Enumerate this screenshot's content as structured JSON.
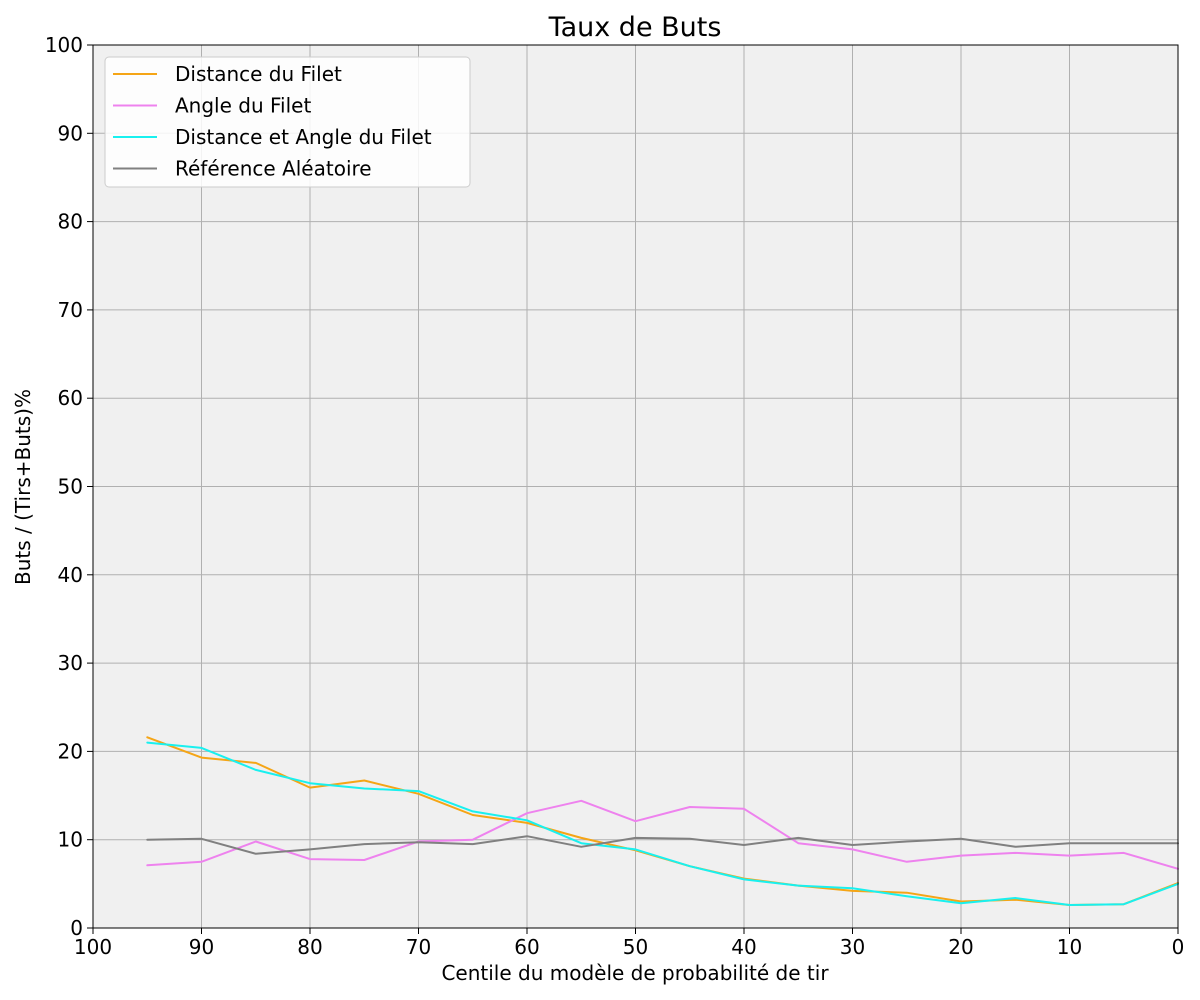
{
  "chart_data": {
    "type": "line",
    "title": "Taux de Buts",
    "xlabel": "Centile du modèle de probabilité de tir",
    "ylabel": "Buts / (Tirs+Buts)%",
    "xlim": [
      100,
      0
    ],
    "ylim": [
      0,
      100
    ],
    "x_reversed": true,
    "xticks": [
      100,
      90,
      80,
      70,
      60,
      50,
      40,
      30,
      20,
      10,
      0
    ],
    "yticks": [
      0,
      10,
      20,
      30,
      40,
      50,
      60,
      70,
      80,
      90,
      100
    ],
    "grid": true,
    "background": "#f0f0f0",
    "legend_position": "upper-left",
    "x": [
      95,
      90,
      85,
      80,
      75,
      70,
      65,
      60,
      55,
      50,
      45,
      40,
      35,
      30,
      25,
      20,
      15,
      10,
      5,
      0
    ],
    "series": [
      {
        "name": "Distance du Filet",
        "color": "#f5a516",
        "values": [
          21.6,
          19.3,
          18.7,
          15.9,
          16.7,
          15.2,
          12.8,
          11.9,
          10.2,
          8.8,
          7.0,
          5.6,
          4.8,
          4.2,
          4.0,
          3.0,
          3.2,
          2.6,
          2.7,
          5.1
        ]
      },
      {
        "name": "Angle du Filet",
        "color": "#ee82ee",
        "values": [
          7.1,
          7.5,
          9.8,
          7.8,
          7.7,
          9.8,
          10.0,
          13.0,
          14.4,
          12.1,
          13.7,
          13.5,
          9.6,
          8.9,
          7.5,
          8.2,
          8.5,
          8.2,
          8.5,
          6.7
        ]
      },
      {
        "name": "Distance et Angle du Filet",
        "color": "#19f0ef",
        "values": [
          21.0,
          20.4,
          17.9,
          16.4,
          15.8,
          15.5,
          13.2,
          12.2,
          9.6,
          8.9,
          7.0,
          5.5,
          4.8,
          4.5,
          3.6,
          2.8,
          3.4,
          2.6,
          2.7,
          5.0
        ]
      },
      {
        "name": "Référence Aléatoire",
        "color": "#808080",
        "values": [
          10.0,
          10.1,
          8.4,
          8.9,
          9.5,
          9.7,
          9.5,
          10.4,
          9.2,
          10.2,
          10.1,
          9.4,
          10.2,
          9.4,
          9.8,
          10.1,
          9.2,
          9.6,
          9.6,
          9.6
        ]
      }
    ]
  }
}
